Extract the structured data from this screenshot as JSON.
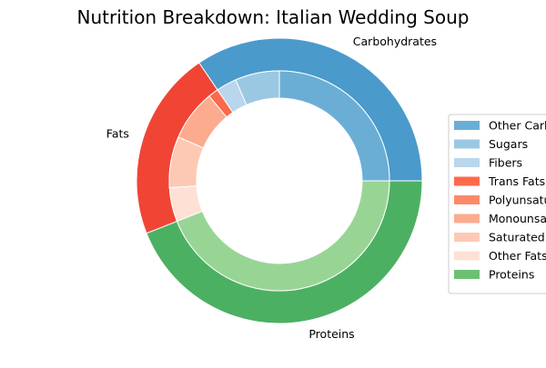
{
  "chart_data": {
    "type": "pie",
    "variant": "nested-donut",
    "title": "Nutrition Breakdown:  Italian Wedding Soup",
    "outer_ring": [
      {
        "label": "Carbohydrates",
        "value": 34.5,
        "color": "#4a9acc"
      },
      {
        "label": "Fats",
        "value": 21.5,
        "color": "#f04535"
      },
      {
        "label": "Proteins",
        "value": 44.0,
        "color": "#4cb062"
      }
    ],
    "inner_ring": [
      {
        "label": "Other Carbohydrates",
        "group": "Carbohydrates",
        "value": 25.0,
        "color": "#6aaed6"
      },
      {
        "label": "Sugars",
        "group": "Carbohydrates",
        "value": 6.5,
        "color": "#9ac8e2"
      },
      {
        "label": "Fibers",
        "group": "Carbohydrates",
        "value": 3.0,
        "color": "#b9d6ec"
      },
      {
        "label": "Trans Fats",
        "group": "Fats",
        "value": 1.5,
        "color": "#fb6a4a"
      },
      {
        "label": "Polyunsaturated Fats",
        "group": "Fats",
        "value": 0.0,
        "color": "#fc8a6a"
      },
      {
        "label": "Monounsaturated Fats",
        "group": "Fats",
        "value": 7.5,
        "color": "#fcab8e"
      },
      {
        "label": "Saturated Fats",
        "group": "Fats",
        "value": 7.5,
        "color": "#fdc9b4"
      },
      {
        "label": "Other Fats",
        "group": "Fats",
        "value": 5.0,
        "color": "#fee1d4"
      },
      {
        "label": "Proteins",
        "group": "Proteins",
        "value": 44.0,
        "color": "#98d594"
      }
    ],
    "legend": {
      "placement": "right",
      "entries": [
        {
          "label": "Other Carbohydrates",
          "color": "#6aaed6"
        },
        {
          "label": "Sugars",
          "color": "#9ac8e2"
        },
        {
          "label": "Fibers",
          "color": "#b9d6ec"
        },
        {
          "label": "Trans Fats",
          "color": "#fd6a4a"
        },
        {
          "label": "Polyunsaturated Fats",
          "color": "#fc8a6a"
        },
        {
          "label": "Monounsaturated Fats",
          "color": "#fcab8e"
        },
        {
          "label": "Saturated Fats",
          "color": "#fdc9b4"
        },
        {
          "label": "Other Fats",
          "color": "#fee1d4"
        },
        {
          "label": "Proteins",
          "color": "#6dc072"
        }
      ]
    }
  }
}
